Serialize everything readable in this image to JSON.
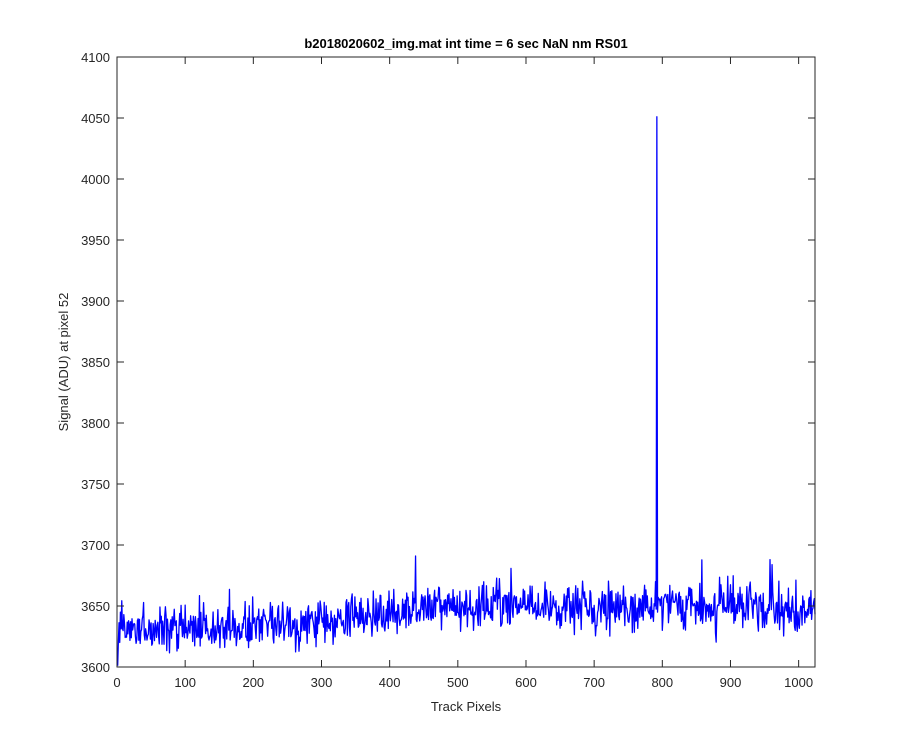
{
  "chart_data": {
    "type": "line",
    "title": "b2018020602_img.mat int time = 6 sec  NaN nm RS01",
    "xlabel": "Track Pixels",
    "ylabel": "Signal (ADU) at pixel 52",
    "xlim": [
      0,
      1024
    ],
    "ylim": [
      3600,
      4100
    ],
    "x_ticks": [
      0,
      100,
      200,
      300,
      400,
      500,
      600,
      700,
      800,
      900,
      1000
    ],
    "y_ticks": [
      3600,
      3650,
      3700,
      3750,
      3800,
      3850,
      3900,
      3950,
      4000,
      4050,
      4100
    ],
    "grid": false,
    "line_color": "#0000ff",
    "series": [
      {
        "x_start": 1,
        "x_step": 1,
        "n_points": 1024,
        "spikes": [
          {
            "x": 1,
            "y": 3601
          },
          {
            "x": 438,
            "y": 3691
          },
          {
            "x": 792,
            "y": 4051
          },
          {
            "x": 958,
            "y": 3688
          }
        ],
        "trend": [
          {
            "x": 1,
            "y": 3632
          },
          {
            "x": 100,
            "y": 3632
          },
          {
            "x": 200,
            "y": 3633
          },
          {
            "x": 300,
            "y": 3637
          },
          {
            "x": 350,
            "y": 3641
          },
          {
            "x": 400,
            "y": 3646
          },
          {
            "x": 500,
            "y": 3649
          },
          {
            "x": 600,
            "y": 3650
          },
          {
            "x": 700,
            "y": 3650
          },
          {
            "x": 800,
            "y": 3650
          },
          {
            "x": 900,
            "y": 3650
          },
          {
            "x": 1024,
            "y": 3646
          }
        ],
        "noise_amplitude": 9
      }
    ]
  }
}
